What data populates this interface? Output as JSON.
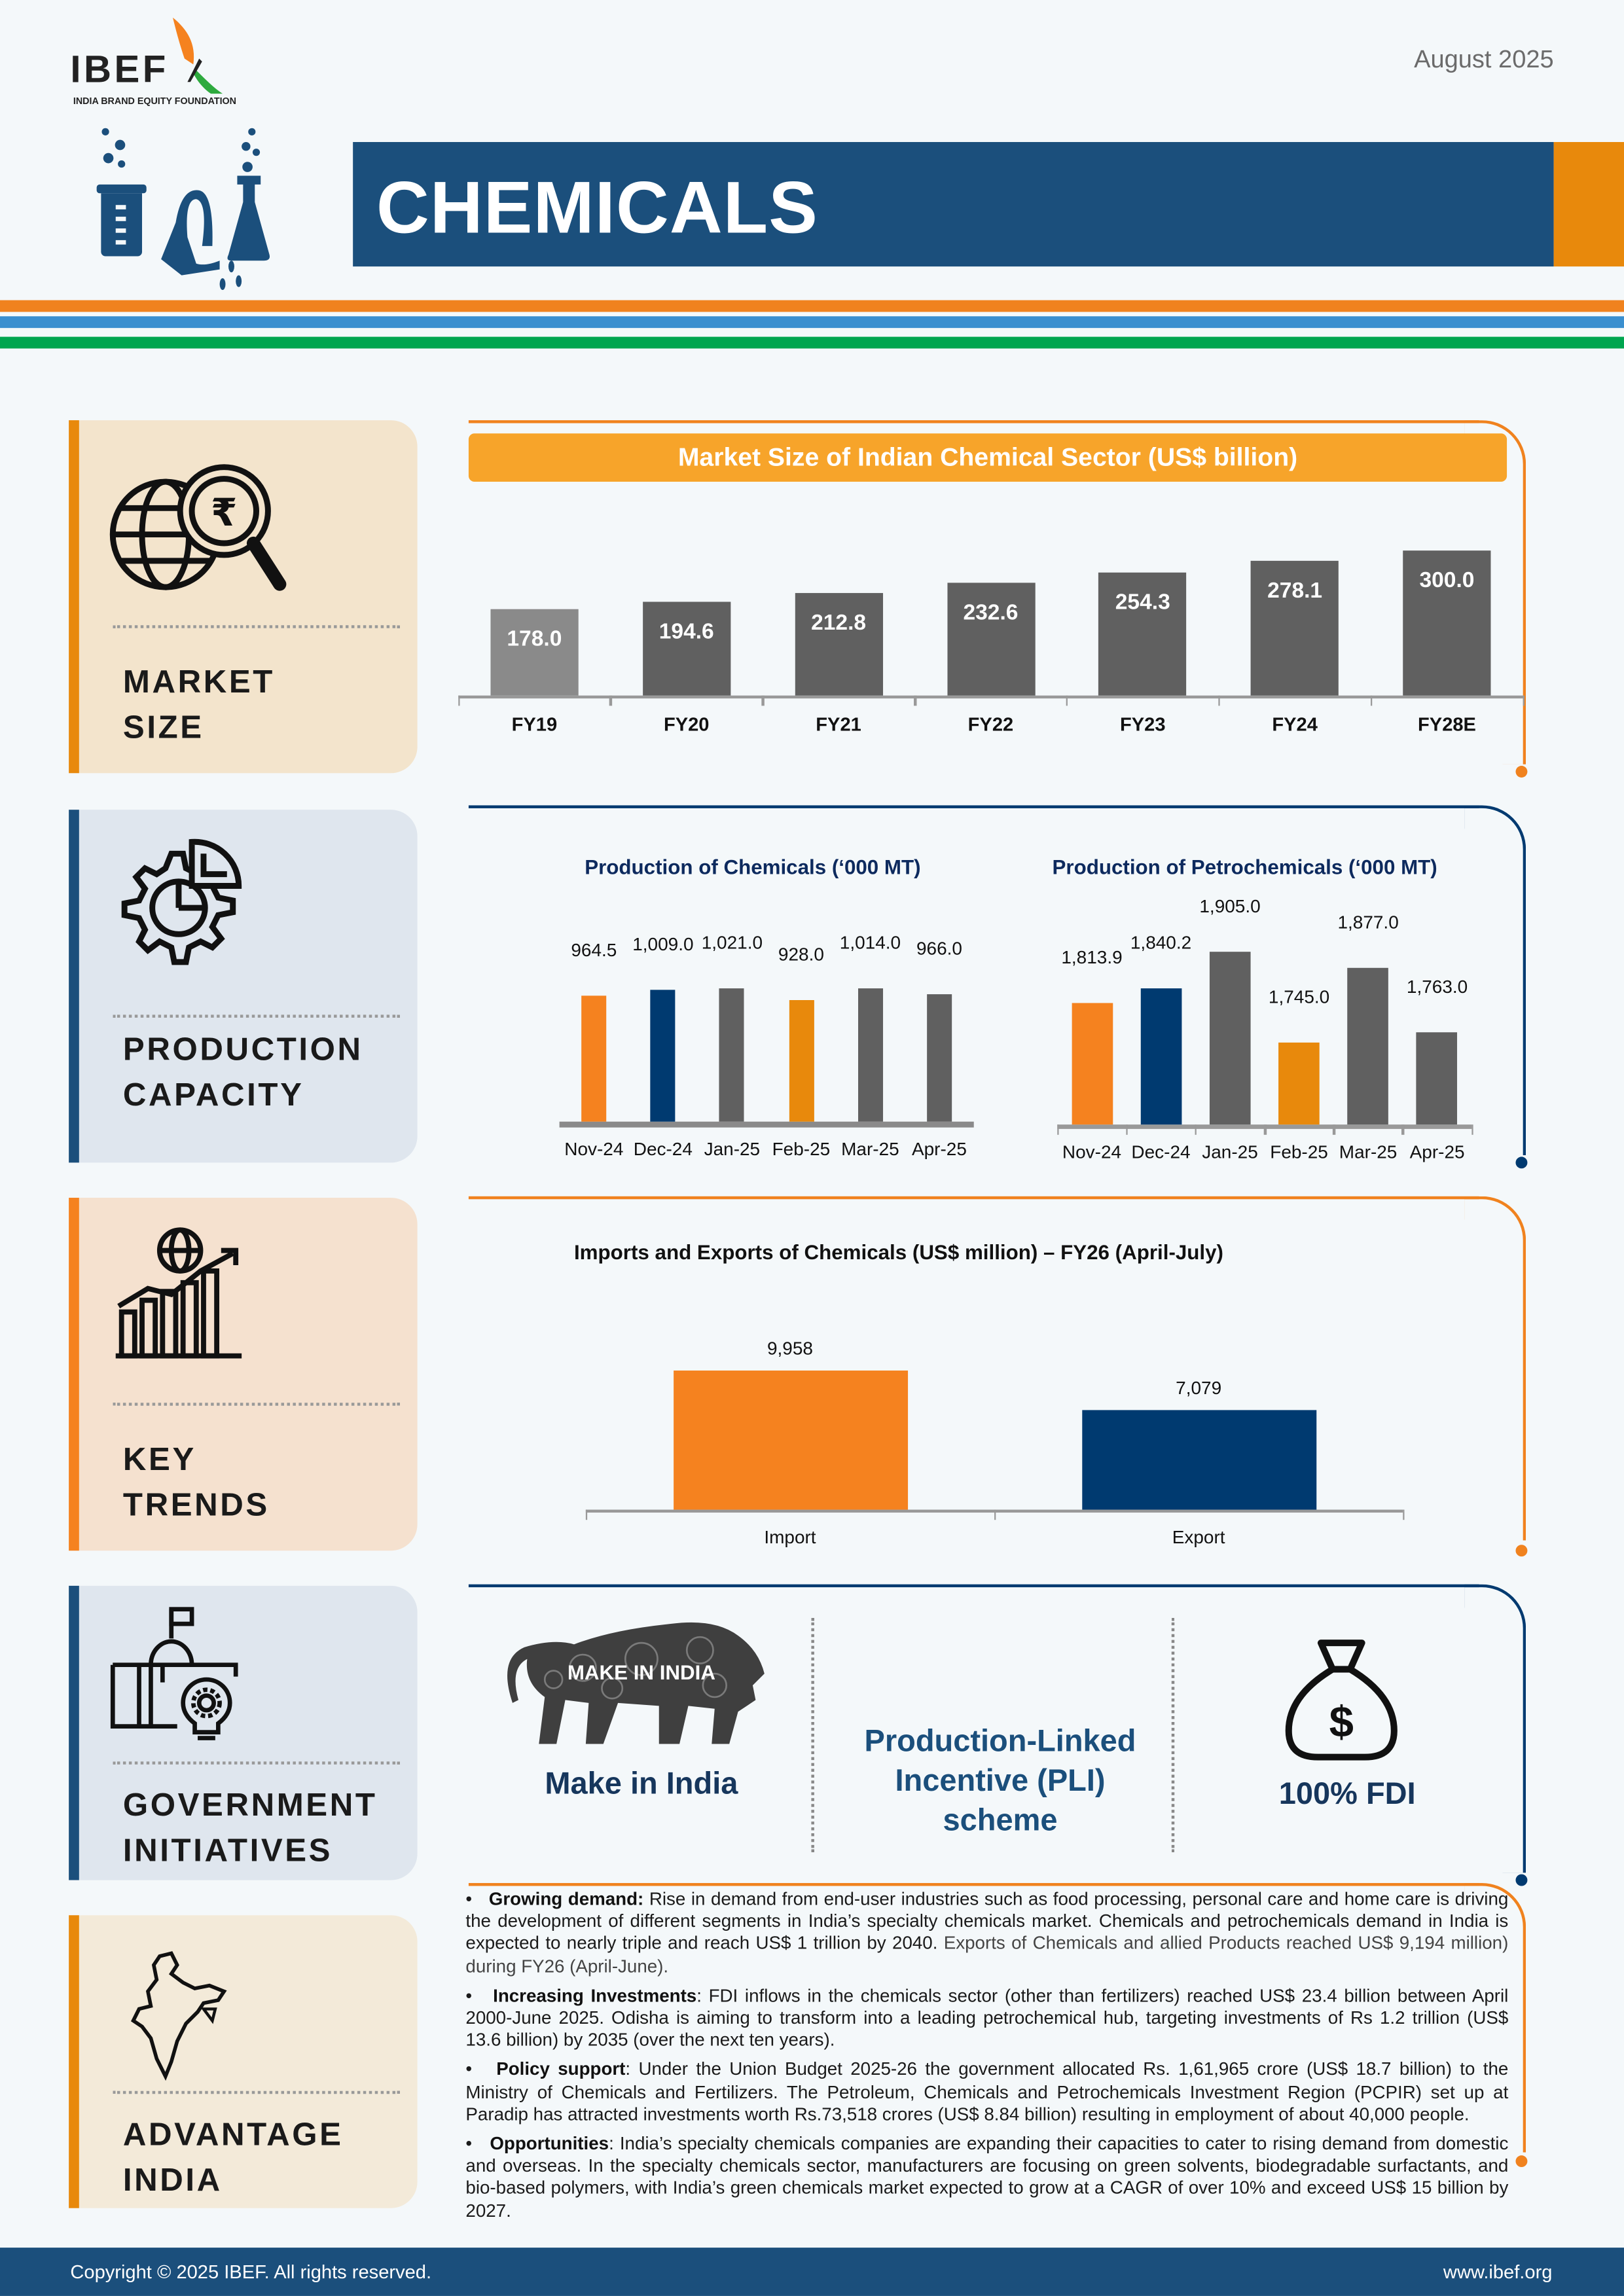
{
  "header": {
    "logo_text": "IBEF",
    "logo_subtext": "INDIA BRAND EQUITY FOUNDATION",
    "date": "August 2025",
    "title": "CHEMICALS"
  },
  "colors": {
    "navy": "#1b4f7c",
    "orange": "#f5821f",
    "amber": "#e8890c",
    "blue_stripe": "#3a8fcf",
    "green_stripe": "#00a54f",
    "dark_navy": "#003a70",
    "gray_bar": "#606060"
  },
  "sections": [
    {
      "label_line1": "MARKET",
      "label_line2": "SIZE",
      "icon": "globe-rupee-magnifier-icon"
    },
    {
      "label_line1": "PRODUCTION",
      "label_line2": "CAPACITY",
      "icon": "gear-pie-chart-icon"
    },
    {
      "label_line1": "KEY",
      "label_line2": "TRENDS",
      "icon": "globe-growth-chart-icon"
    },
    {
      "label_line1": "GOVERNMENT",
      "label_line2": "INITIATIVES",
      "icon": "government-building-bulb-icon"
    },
    {
      "label_line1": "ADVANTAGE",
      "label_line2": "INDIA",
      "icon": "india-map-icon"
    }
  ],
  "chart_data": [
    {
      "type": "bar",
      "title": "Market Size of Indian Chemical Sector (US$ billion)",
      "categories": [
        "FY19",
        "FY20",
        "FY21",
        "FY22",
        "FY23",
        "FY24",
        "FY28E"
      ],
      "values": [
        178.0,
        194.6,
        212.8,
        232.6,
        254.3,
        278.1,
        300.0
      ],
      "labels": [
        "178.0",
        "194.6",
        "212.8",
        "232.6",
        "254.3",
        "278.1",
        "300.0"
      ],
      "colors": [
        "#8a8a8a",
        "#606060",
        "#606060",
        "#606060",
        "#606060",
        "#606060",
        "#606060"
      ],
      "ylim": [
        0,
        320
      ],
      "grid": false
    },
    {
      "type": "bar",
      "title": "Production of Chemicals (‘000 MT)",
      "categories": [
        "Nov-24",
        "Dec-24",
        "Jan-25",
        "Feb-25",
        "Mar-25",
        "Apr-25"
      ],
      "values": [
        964.5,
        1009.0,
        1021.0,
        928.0,
        1014.0,
        966.0
      ],
      "labels": [
        "964.5",
        "1,009.0",
        "1,021.0",
        "928.0",
        "1,014.0",
        "966.0"
      ],
      "colors": [
        "#f5821f",
        "#003a70",
        "#606060",
        "#e8890c",
        "#606060",
        "#606060"
      ],
      "ylim": [
        0,
        1150
      ],
      "grid": false
    },
    {
      "type": "bar",
      "title": "Production of Petrochemicals (‘000 MT)",
      "categories": [
        "Nov-24",
        "Dec-24",
        "Jan-25",
        "Feb-25",
        "Mar-25",
        "Apr-25"
      ],
      "values": [
        1813.9,
        1840.2,
        1905.0,
        1745.0,
        1877.0,
        1763.0
      ],
      "labels": [
        "1,813.9",
        "1,840.2",
        "1,905.0",
        "1,745.0",
        "1,877.0",
        "1,763.0"
      ],
      "colors": [
        "#f5821f",
        "#003a70",
        "#606060",
        "#e8890c",
        "#606060",
        "#606060"
      ],
      "ylim": [
        1600,
        2000
      ],
      "grid": false
    },
    {
      "type": "bar",
      "title": "Imports and Exports of Chemicals (US$ million) – FY26 (April-July)",
      "categories": [
        "Import",
        "Export"
      ],
      "values": [
        9958,
        7079
      ],
      "labels": [
        "9,958",
        "7,079"
      ],
      "colors": [
        "#f5821f",
        "#003a70"
      ],
      "ylim": [
        0,
        11000
      ],
      "grid": false
    }
  ],
  "government": {
    "items": [
      {
        "label": "Make in India",
        "logo_text": "MAKE IN INDIA",
        "icon": "make-in-india-lion-icon"
      },
      {
        "label_lines": [
          "Production-Linked",
          "Incentive (PLI)",
          "scheme"
        ]
      },
      {
        "label": "100% FDI",
        "icon": "money-bag-dollar-icon"
      }
    ]
  },
  "advantage": [
    {
      "title": "Growing demand:",
      "text": " Rise in demand from end-user industries such as food processing, personal care and home care is driving the development of different segments in India’s specialty chemicals market. Chemicals and petrochemicals demand in India is expected to nearly triple and reach US$ 1 trillion by 2040.",
      "text2": " Exports of Chemicals and allied Products reached US$ 9,194 million) during FY26 (April-June)."
    },
    {
      "title": "Increasing Investments",
      "text": ": FDI inflows in the chemicals sector (other than fertilizers) reached US$ 23.4 billion between April 2000-June 2025. Odisha is aiming to transform into a leading petrochemical hub, targeting investments of Rs 1.2 trillion (US$ 13.6 billion) by 2035 (over the next ten years)."
    },
    {
      "title": "Policy support",
      "text": ": Under the Union Budget 2025-26 the government allocated Rs. 1,61,965 crore (US$ 18.7 billion) to the Ministry of Chemicals and Fertilizers. The Petroleum, Chemicals and Petrochemicals Investment Region (PCPIR) set up at Paradip has attracted investments worth Rs.73,518 crores (US$ 8.84 billion) resulting in employment of about 40,000 people."
    },
    {
      "title": "Opportunities",
      "text": ": India’s specialty chemicals companies are expanding their capacities to cater to rising demand from domestic and overseas. In the specialty chemicals sector, manufacturers are focusing on green solvents, biodegradable surfactants, and bio-based polymers, with India’s green chemicals market expected to grow at a CAGR of over 10% and exceed US$ 15 billion by 2027."
    }
  ],
  "footer": {
    "copyright": "Copyright © 2025 IBEF. All rights reserved.",
    "website": "www.ibef.org"
  }
}
